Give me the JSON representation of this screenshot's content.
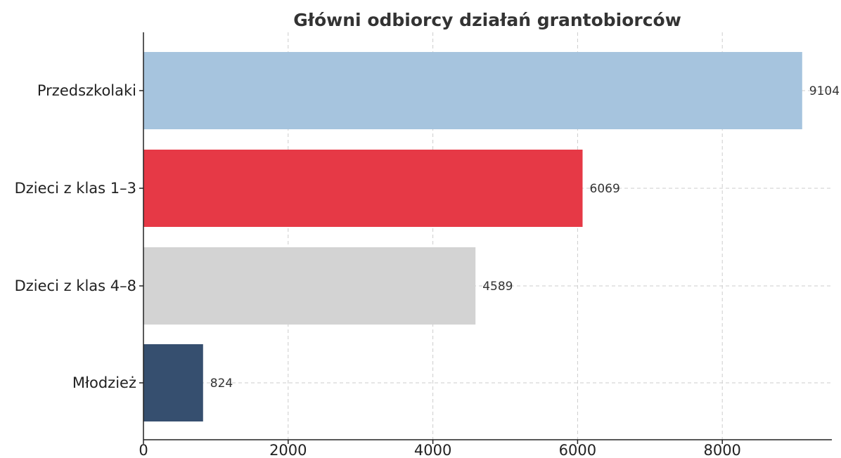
{
  "chart_data": {
    "type": "bar",
    "orientation": "horizontal",
    "title": "Główni odbiorcy działań grantobiorców",
    "xlabel": "",
    "ylabel": "",
    "categories": [
      "Przedszkolaki",
      "Dzieci z klas 1–3",
      "Dzieci z klas 4–8",
      "Młodzież"
    ],
    "values": [
      9104,
      6069,
      4589,
      824
    ],
    "colors": [
      "#a6c4de",
      "#e63946",
      "#d3d3d3",
      "#364f6f"
    ],
    "xlim": [
      0,
      9500
    ],
    "xticks": [
      0,
      2000,
      4000,
      6000,
      8000
    ],
    "xtick_labels": [
      "0",
      "2000",
      "4000",
      "6000",
      "8000"
    ],
    "grid": true,
    "legend": "none"
  }
}
